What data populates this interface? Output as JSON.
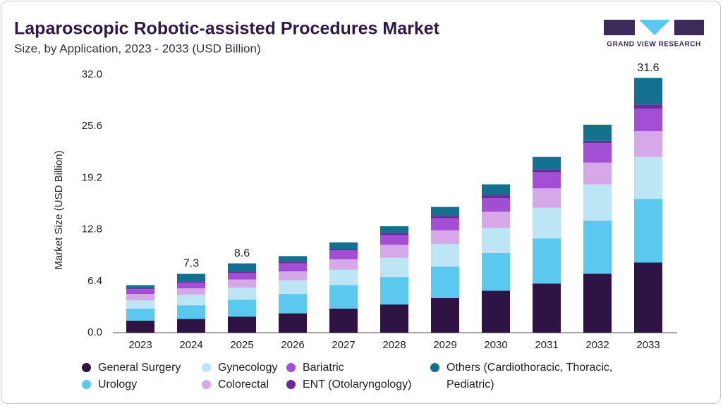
{
  "chart_data": {
    "type": "stacked_bar",
    "title": "Laparoscopic Robotic-assisted Procedures Market",
    "subtitle": "Size, by Application, 2023 - 2033 (USD Billion)",
    "y_label": "Market Size (USD Billion)",
    "logo_text": "GRAND VIEW RESEARCH",
    "categories": [
      "2023",
      "2024",
      "2025",
      "2026",
      "2027",
      "2028",
      "2029",
      "2030",
      "2031",
      "2032",
      "2033"
    ],
    "series": [
      {
        "name": "General Surgery",
        "color": "#2e1444",
        "values": [
          1.5,
          1.7,
          2.0,
          2.4,
          3.0,
          3.5,
          4.3,
          5.2,
          6.1,
          7.3,
          8.7
        ]
      },
      {
        "name": "Urology",
        "color": "#5bc8f0",
        "values": [
          1.5,
          1.7,
          2.1,
          2.4,
          2.9,
          3.4,
          3.9,
          4.7,
          5.6,
          6.6,
          7.9
        ]
      },
      {
        "name": "Gynecology",
        "color": "#bde6f5",
        "values": [
          1.0,
          1.3,
          1.5,
          1.7,
          1.9,
          2.4,
          2.8,
          3.1,
          3.8,
          4.5,
          5.2
        ]
      },
      {
        "name": "Colorectal",
        "color": "#d6a8e8",
        "values": [
          0.8,
          0.8,
          1.0,
          1.1,
          1.3,
          1.6,
          1.7,
          2.0,
          2.4,
          2.7,
          3.2
        ]
      },
      {
        "name": "Bariatric",
        "color": "#a24fd6",
        "values": [
          0.6,
          0.7,
          0.8,
          1.0,
          1.1,
          1.2,
          1.5,
          1.7,
          2.0,
          2.4,
          2.8
        ]
      },
      {
        "name": "ENT (Otolaryngology)",
        "color": "#6a2a9a",
        "values": [
          0.1,
          0.1,
          0.2,
          0.2,
          0.2,
          0.3,
          0.3,
          0.4,
          0.3,
          0.3,
          0.5
        ]
      },
      {
        "name": "Others (Cardiothoracic, Thoracic, Pediatric)",
        "color": "#13708f",
        "values": [
          0.4,
          1.0,
          1.0,
          0.7,
          0.8,
          0.8,
          1.1,
          1.3,
          1.6,
          2.0,
          3.3
        ]
      }
    ],
    "totals": [
      null,
      7.3,
      8.6,
      null,
      null,
      null,
      null,
      null,
      null,
      null,
      31.6
    ],
    "ylim": [
      0,
      32
    ],
    "yticks": [
      {
        "value": 0,
        "label": "0.0"
      },
      {
        "value": 6.4,
        "label": "6.4"
      },
      {
        "value": 12.8,
        "label": "12.8"
      },
      {
        "value": 19.2,
        "label": "19.2"
      },
      {
        "value": 25.6,
        "label": "25.6"
      },
      {
        "value": 32,
        "label": "32.0"
      }
    ],
    "grid": false
  }
}
